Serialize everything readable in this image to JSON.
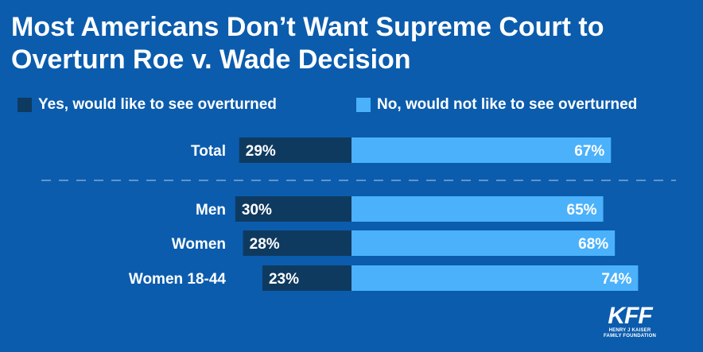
{
  "title": "Most Americans Don’t Want Supreme Court to Overturn Roe v. Wade Decision",
  "legend": {
    "yes": "Yes, would like to see overturned",
    "no": "No, would not like to see overturned"
  },
  "colors": {
    "background": "#0b5cad",
    "yes": "#0f3a60",
    "no": "#4bb1fb",
    "divider": "#7ea8d6",
    "text": "#ffffff"
  },
  "chart_data": {
    "type": "bar",
    "orientation": "horizontal",
    "stacked": "diverging",
    "title": "Most Americans Don’t Want Supreme Court to Overturn Roe v. Wade Decision",
    "categories": [
      "Total",
      "Men",
      "Women",
      "Women 18-44"
    ],
    "series": [
      {
        "name": "Yes, would like to see overturned",
        "values": [
          29,
          30,
          28,
          23
        ],
        "labels": [
          "29%",
          "30%",
          "28%",
          "23%"
        ]
      },
      {
        "name": "No, would not like to see overturned",
        "values": [
          67,
          65,
          68,
          74
        ],
        "labels": [
          "67%",
          "65%",
          "68%",
          "74%"
        ]
      }
    ],
    "unit": "%",
    "divider_after": "Total",
    "legend_position": "top"
  },
  "logo": {
    "mark": "KFF",
    "line1": "HENRY J KAISER",
    "line2": "FAMILY FOUNDATION"
  }
}
